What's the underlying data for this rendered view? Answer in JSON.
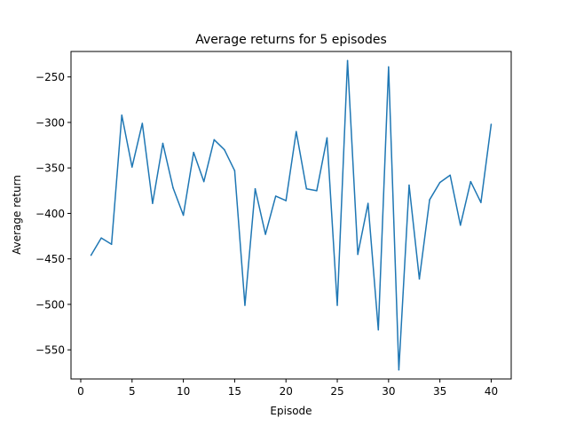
{
  "chart_data": {
    "type": "line",
    "title": "Average returns for 5 episodes",
    "xlabel": "Episode",
    "ylabel": "Average return",
    "xlim": [
      -0.95,
      41.95
    ],
    "ylim": [
      -582,
      -222
    ],
    "xticks": [
      0,
      5,
      10,
      15,
      20,
      25,
      30,
      35,
      40
    ],
    "yticks": [
      -550,
      -500,
      -450,
      -400,
      -350,
      -300,
      -250
    ],
    "grid": false,
    "series": [
      {
        "color": "#1f77b4",
        "x": [
          1,
          2,
          3,
          4,
          5,
          6,
          7,
          8,
          9,
          10,
          11,
          12,
          13,
          14,
          15,
          16,
          17,
          18,
          19,
          20,
          21,
          22,
          23,
          24,
          25,
          26,
          27,
          28,
          29,
          30,
          31,
          32,
          33,
          34,
          35,
          36,
          37,
          38,
          39,
          40
        ],
        "values": [
          -446,
          -427,
          -434,
          -292,
          -349,
          -301,
          -389,
          -323,
          -372,
          -402,
          -333,
          -365,
          -319,
          -330,
          -353,
          -501,
          -373,
          -423,
          -381,
          -386,
          -310,
          -373,
          -375,
          -317,
          -501,
          -232,
          -445,
          -389,
          -528,
          -239,
          -572,
          -369,
          -472,
          -385,
          -366,
          -358,
          -413,
          -365,
          -388,
          -302
        ]
      }
    ]
  }
}
